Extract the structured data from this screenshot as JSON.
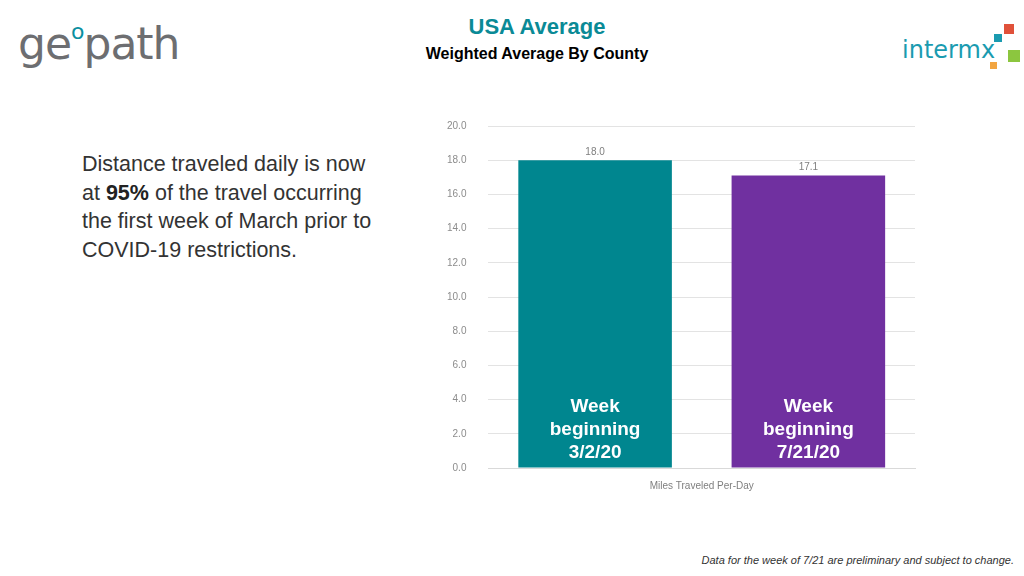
{
  "chart_data": {
    "type": "bar",
    "title": "USA Average",
    "subtitle": "Weighted Average By County",
    "x_label": "Miles Traveled Per-Day",
    "categories": [
      "Week beginning 3/2/20",
      "Week beginning 7/21/20"
    ],
    "values": [
      18.0,
      17.1
    ],
    "value_labels": [
      "18.0",
      "17.1"
    ],
    "colors": [
      "#00868f",
      "#7030a0"
    ],
    "ylim": [
      0,
      20
    ],
    "yticks": [
      {
        "value": 0,
        "label": "0.0"
      },
      {
        "value": 2,
        "label": "2.0"
      },
      {
        "value": 4,
        "label": "4.0"
      },
      {
        "value": 6,
        "label": "6.0"
      },
      {
        "value": 8,
        "label": "8.0"
      },
      {
        "value": 10,
        "label": "10.0"
      },
      {
        "value": 12,
        "label": "12.0"
      },
      {
        "value": 14,
        "label": "14.0"
      },
      {
        "value": 16,
        "label": "16.0"
      },
      {
        "value": 18,
        "label": "18.0"
      },
      {
        "value": 20,
        "label": "20.0"
      }
    ],
    "grid": true,
    "data_labels": true,
    "tick_labels": "y"
  },
  "page": {
    "logo_left": "geopath",
    "logo_right": "intermx",
    "statement": {
      "before": "Distance traveled daily is now at ",
      "emphasis": "95%",
      "after": " of the travel occurring the first week of March prior to COVID-19 restrictions."
    },
    "footnote": "Data for the week of 7/21 are preliminary  and subject to change."
  }
}
